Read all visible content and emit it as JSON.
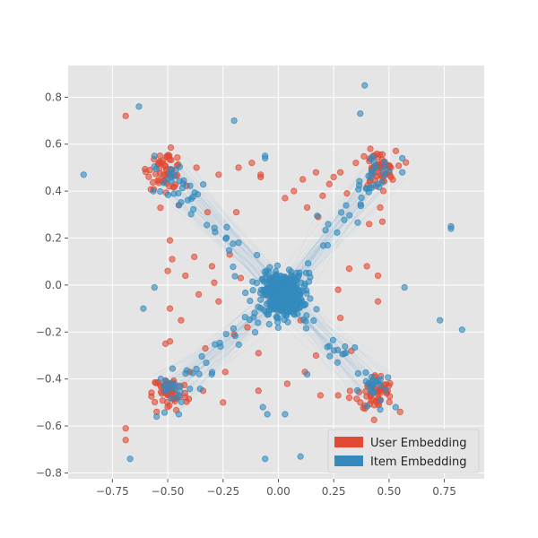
{
  "chart_data": {
    "type": "scatter",
    "title": "",
    "xlabel": "",
    "ylabel": "",
    "xlim": [
      -0.95,
      0.93
    ],
    "ylim": [
      -0.825,
      0.935
    ],
    "xticks": [
      -0.75,
      -0.5,
      -0.25,
      0.0,
      0.25,
      0.5,
      0.75
    ],
    "yticks": [
      -0.8,
      -0.6,
      -0.4,
      -0.2,
      0.0,
      0.2,
      0.4,
      0.6,
      0.8
    ],
    "xtick_labels": [
      "−0.75",
      "−0.50",
      "−0.25",
      "0.00",
      "0.25",
      "0.50",
      "0.75"
    ],
    "ytick_labels": [
      "−0.8",
      "−0.6",
      "−0.4",
      "−0.2",
      "0.0",
      "0.2",
      "0.4",
      "0.6",
      "0.8"
    ],
    "grid": true,
    "legend_position": "bottom-right",
    "colors": {
      "user": "#E24A33",
      "item": "#348ABD",
      "background": "#E5E5E5",
      "grid": "#FFFFFF"
    },
    "series": [
      {
        "name": "User Embedding",
        "color": "#E24A33",
        "clusters": [
          {
            "center": [
              -0.51,
              0.49
            ],
            "spread": 0.04,
            "count": 55
          },
          {
            "center": [
              0.45,
              0.49
            ],
            "spread": 0.04,
            "count": 55
          },
          {
            "center": [
              -0.49,
              -0.46
            ],
            "spread": 0.04,
            "count": 55
          },
          {
            "center": [
              0.44,
              -0.46
            ],
            "spread": 0.04,
            "count": 55
          }
        ],
        "points": [
          [
            -0.69,
            0.72
          ],
          [
            -0.69,
            -0.61
          ],
          [
            -0.69,
            -0.66
          ],
          [
            -0.49,
            -0.24
          ],
          [
            -0.45,
            -0.43
          ],
          [
            -0.34,
            -0.45
          ],
          [
            -0.25,
            -0.5
          ],
          [
            -0.22,
            0.13
          ],
          [
            -0.38,
            0.12
          ],
          [
            -0.48,
            0.11
          ],
          [
            -0.49,
            0.19
          ],
          [
            -0.45,
            0.34
          ],
          [
            -0.27,
            0.47
          ],
          [
            -0.18,
            0.5
          ],
          [
            -0.12,
            0.52
          ],
          [
            -0.08,
            0.47
          ],
          [
            0.07,
            0.4
          ],
          [
            0.11,
            0.45
          ],
          [
            0.17,
            0.48
          ],
          [
            0.23,
            0.43
          ],
          [
            0.28,
            0.48
          ],
          [
            0.41,
            0.26
          ],
          [
            0.46,
            0.33
          ],
          [
            0.47,
            0.27
          ],
          [
            0.4,
            0.08
          ],
          [
            0.45,
            0.04
          ],
          [
            0.27,
            -0.02
          ],
          [
            0.28,
            -0.14
          ],
          [
            0.45,
            -0.07
          ],
          [
            -0.49,
            -0.1
          ],
          [
            -0.44,
            -0.15
          ],
          [
            -0.33,
            -0.27
          ],
          [
            -0.2,
            -0.21
          ],
          [
            -0.14,
            -0.18
          ],
          [
            0.1,
            -0.15
          ],
          [
            0.17,
            -0.3
          ],
          [
            0.19,
            -0.47
          ],
          [
            0.27,
            -0.47
          ],
          [
            0.32,
            -0.48
          ],
          [
            0.37,
            -0.5
          ],
          [
            0.55,
            -0.54
          ],
          [
            -0.55,
            -0.54
          ],
          [
            -0.58,
            0.49
          ],
          [
            -0.37,
            0.5
          ],
          [
            -0.17,
            0.03
          ],
          [
            -0.27,
            -0.07
          ],
          [
            -0.09,
            -0.29
          ],
          [
            0.04,
            -0.42
          ],
          [
            0.13,
            0.33
          ],
          [
            -0.19,
            0.31
          ],
          [
            -0.32,
            0.31
          ],
          [
            -0.3,
            0.08
          ],
          [
            -0.5,
            0.06
          ],
          [
            -0.29,
            0.01
          ],
          [
            0.18,
            0.29
          ],
          [
            0.32,
            0.07
          ],
          [
            0.31,
            0.39
          ],
          [
            0.25,
            0.46
          ],
          [
            -0.09,
            -0.45
          ],
          [
            -0.24,
            -0.37
          ],
          [
            0.12,
            -0.37
          ],
          [
            0.33,
            -0.28
          ],
          [
            0.35,
            0.52
          ],
          [
            0.2,
            0.38
          ],
          [
            -0.42,
            0.04
          ],
          [
            -0.51,
            -0.25
          ],
          [
            -0.4,
            -0.37
          ],
          [
            -0.36,
            -0.04
          ],
          [
            -0.08,
            0.46
          ],
          [
            0.03,
            0.37
          ]
        ]
      },
      {
        "name": "Item Embedding",
        "color": "#348ABD",
        "clusters": [
          {
            "center": [
              0.02,
              -0.04
            ],
            "spread": 0.045,
            "count": 380
          },
          {
            "center": [
              -0.49,
              0.46
            ],
            "spread": 0.035,
            "count": 20
          },
          {
            "center": [
              0.44,
              0.47
            ],
            "spread": 0.035,
            "count": 20
          },
          {
            "center": [
              -0.47,
              -0.44
            ],
            "spread": 0.035,
            "count": 20
          },
          {
            "center": [
              0.44,
              -0.44
            ],
            "spread": 0.035,
            "count": 20
          }
        ],
        "arms": [
          {
            "from": [
              0.02,
              -0.04
            ],
            "to": [
              -0.45,
              0.4
            ],
            "count": 28
          },
          {
            "from": [
              0.02,
              -0.04
            ],
            "to": [
              0.4,
              0.42
            ],
            "count": 28
          },
          {
            "from": [
              0.02,
              -0.04
            ],
            "to": [
              -0.43,
              -0.4
            ],
            "count": 28
          },
          {
            "from": [
              0.02,
              -0.04
            ],
            "to": [
              0.4,
              -0.4
            ],
            "count": 28
          }
        ],
        "points": [
          [
            -0.88,
            0.47
          ],
          [
            -0.63,
            0.76
          ],
          [
            -0.2,
            0.7
          ],
          [
            0.39,
            0.85
          ],
          [
            -0.06,
            0.55
          ],
          [
            -0.06,
            0.54
          ],
          [
            0.56,
            0.54
          ],
          [
            0.56,
            0.48
          ],
          [
            0.78,
            0.25
          ],
          [
            0.78,
            0.24
          ],
          [
            0.57,
            -0.01
          ],
          [
            0.73,
            -0.15
          ],
          [
            0.83,
            -0.19
          ],
          [
            -0.56,
            -0.01
          ],
          [
            -0.61,
            -0.1
          ],
          [
            -0.56,
            0.55
          ],
          [
            -0.07,
            -0.52
          ],
          [
            -0.06,
            -0.74
          ],
          [
            -0.67,
            -0.74
          ],
          [
            0.1,
            -0.73
          ],
          [
            0.03,
            -0.55
          ],
          [
            -0.05,
            -0.55
          ],
          [
            0.13,
            -0.38
          ],
          [
            -0.55,
            -0.56
          ],
          [
            -0.45,
            -0.55
          ],
          [
            0.53,
            -0.52
          ],
          [
            0.46,
            -0.53
          ],
          [
            0.37,
            0.73
          ],
          [
            0.23,
            -0.26
          ],
          [
            -0.18,
            0.18
          ]
        ]
      }
    ],
    "background_lines": [
      {
        "from": [
          0.02,
          -0.04
        ],
        "to": [
          -0.49,
          0.47
        ]
      },
      {
        "from": [
          0.02,
          -0.04
        ],
        "to": [
          0.45,
          0.48
        ]
      },
      {
        "from": [
          0.02,
          -0.04
        ],
        "to": [
          -0.48,
          -0.45
        ]
      },
      {
        "from": [
          0.02,
          -0.04
        ],
        "to": [
          0.44,
          -0.45
        ]
      }
    ],
    "legend": [
      "User Embedding",
      "Item Embedding"
    ]
  }
}
